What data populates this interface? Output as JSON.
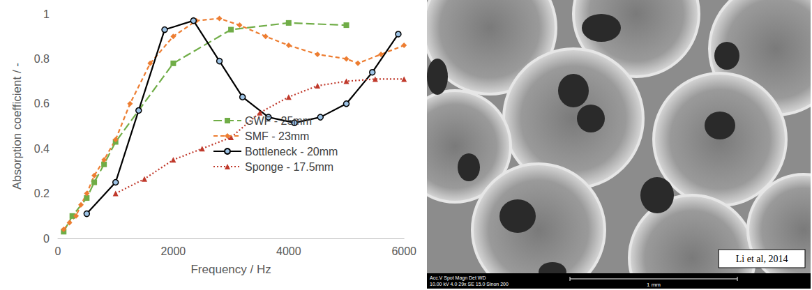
{
  "chart_data": {
    "type": "line",
    "x_label": "Frequency / Hz",
    "y_label": "Absorption coefficient / -",
    "xlim": [
      0,
      6000
    ],
    "xticks": [
      0,
      2000,
      4000,
      6000
    ],
    "ylim": [
      0,
      1
    ],
    "yticks": [
      0,
      0.2,
      0.4,
      0.6,
      0.8,
      1
    ],
    "grid": false,
    "legend": "bottom",
    "series": [
      {
        "name": "GWF - 25mm",
        "color": "#70ad47",
        "marker": "square",
        "line_style": "longdash",
        "x": [
          100,
          250,
          500,
          630,
          800,
          1000,
          2000,
          3000,
          4000,
          5000
        ],
        "values": [
          0.03,
          0.1,
          0.18,
          0.25,
          0.33,
          0.43,
          0.78,
          0.93,
          0.96,
          0.95
        ]
      },
      {
        "name": "SMF - 23mm",
        "color": "#ed7d31",
        "marker": "diamond",
        "line_style": "dashed",
        "x": [
          100,
          200,
          315,
          400,
          500,
          630,
          800,
          1000,
          1250,
          1600,
          2000,
          2400,
          2800,
          3150,
          3600,
          4000,
          4500,
          5000,
          5200,
          5600,
          6000
        ],
        "values": [
          0.04,
          0.07,
          0.1,
          0.15,
          0.2,
          0.28,
          0.35,
          0.44,
          0.6,
          0.78,
          0.9,
          0.97,
          0.98,
          0.95,
          0.9,
          0.86,
          0.82,
          0.8,
          0.78,
          0.82,
          0.86
        ]
      },
      {
        "name": "Bottleneck - 20mm",
        "color": "#000000",
        "marker": "circle",
        "line_style": "solid",
        "x": [
          500,
          1000,
          1400,
          1850,
          2350,
          2800,
          3200,
          3650,
          4100,
          4550,
          5000,
          5450,
          5900
        ],
        "values": [
          0.11,
          0.25,
          0.57,
          0.93,
          0.97,
          0.79,
          0.63,
          0.54,
          0.515,
          0.54,
          0.6,
          0.74,
          0.91
        ]
      },
      {
        "name": "Sponge - 17.5mm",
        "color": "#c0392b",
        "marker": "triangle",
        "line_style": "dotted",
        "x": [
          1000,
          1500,
          2000,
          2500,
          3000,
          3500,
          4000,
          4500,
          5000,
          5500,
          6000
        ],
        "values": [
          0.2,
          0.265,
          0.35,
          0.4,
          0.45,
          0.56,
          0.63,
          0.68,
          0.7,
          0.71,
          0.71
        ]
      }
    ]
  },
  "image_panel": {
    "credit": "Li et al, 2014",
    "scale_bar": "1 mm",
    "info_bar": [
      "Acc.V Spot Magn Det WD",
      "10.00 kV 4.0 29x SE 15.0 Sinon 200"
    ]
  }
}
